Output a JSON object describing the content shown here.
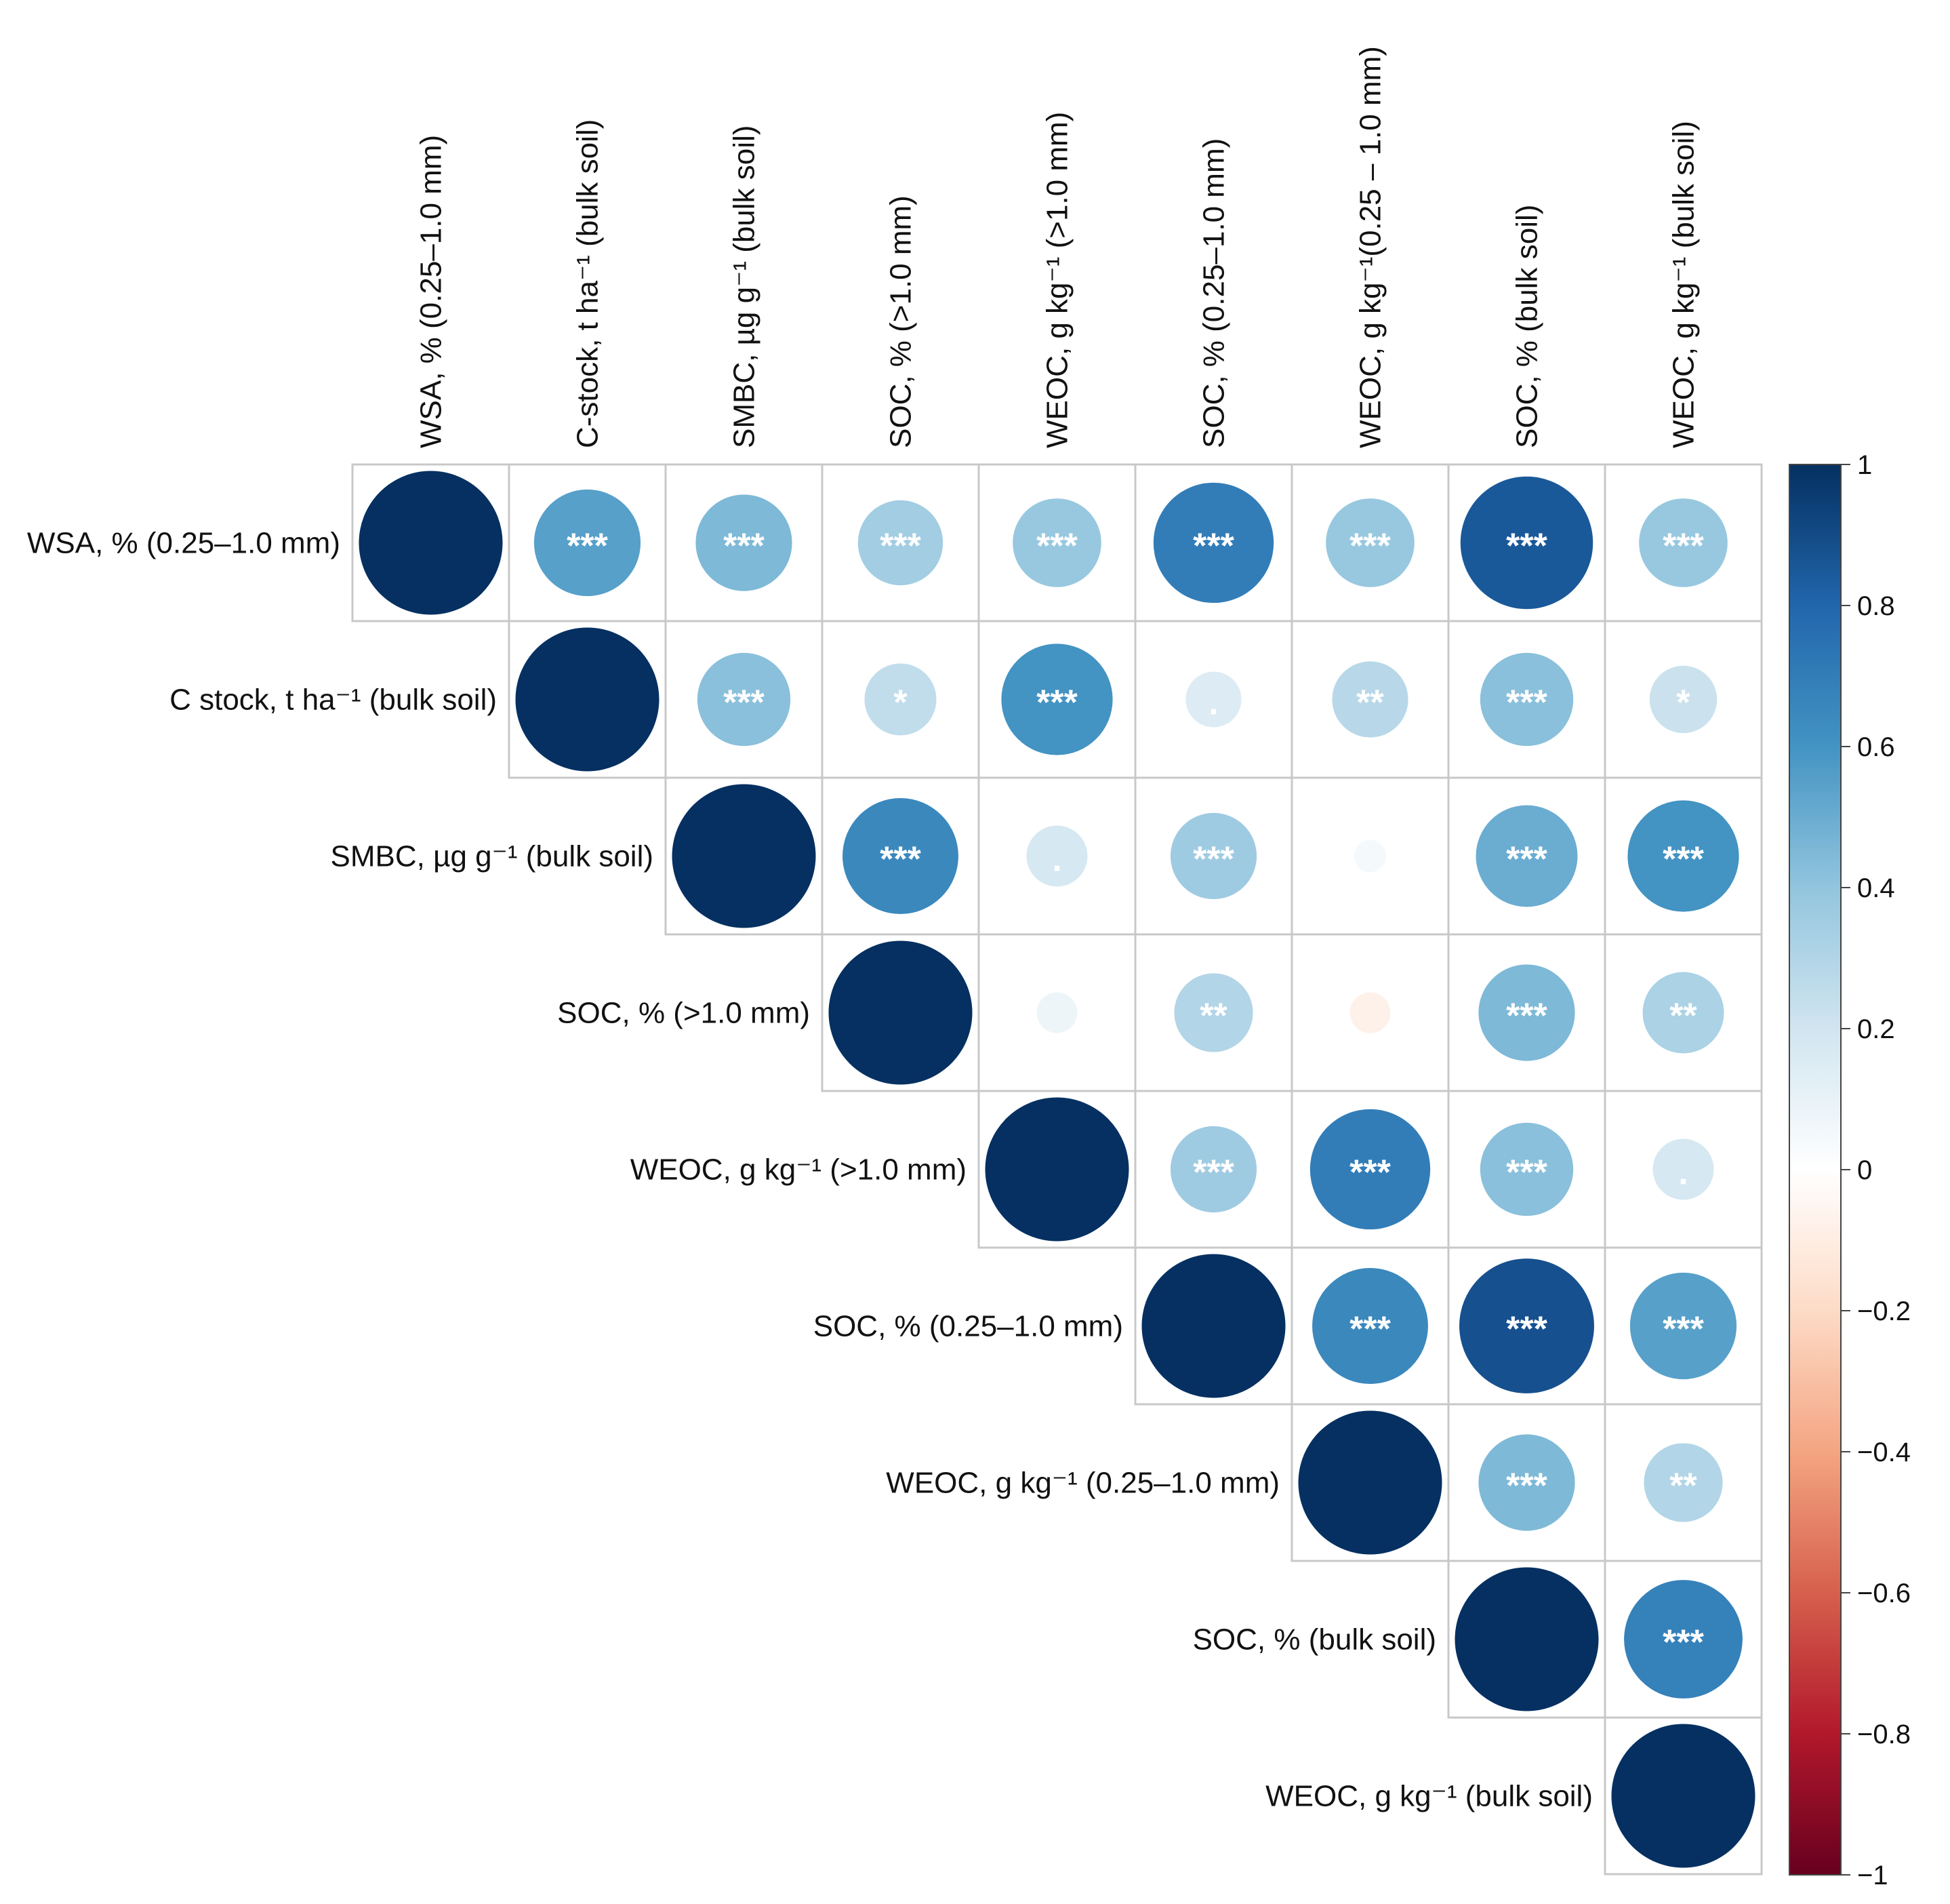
{
  "chart_data": {
    "type": "correlation-matrix",
    "shape": "upper-triangle circles",
    "variables_row": [
      "WSA, % (0.25–1.0 mm)",
      "C stock, t ha⁻¹ (bulk soil)",
      "SMBC, µg g⁻¹ (bulk soil)",
      "SOC, % (>1.0 mm)",
      "WEOC, g kg⁻¹   (>1.0 mm)",
      "SOC, %  (0.25–1.0 mm)",
      "WEOC, g kg⁻¹ (0.25–1.0 mm)",
      "SOC, % (bulk soil)",
      "WEOC, g kg⁻¹ (bulk soil)"
    ],
    "variables_col": [
      "WSA, % (0.25–1.0 mm)",
      "C-stock, t ha⁻¹ (bulk soil)",
      "SMBC, µg g⁻¹ (bulk soil)",
      "SOC, % (>1.0 mm)",
      "WEOC, g kg⁻¹ (>1.0 mm)",
      "SOC, % (0.25–1.0 mm)",
      "WEOC, g kg⁻¹(0.25 – 1.0 mm)",
      "SOC, % (bulk soil)",
      "WEOC, g kg⁻¹ (bulk soil)"
    ],
    "matrix": [
      [
        1.0,
        0.55,
        0.45,
        0.35,
        0.38,
        0.7,
        0.38,
        0.85,
        0.38
      ],
      [
        null,
        1.0,
        0.42,
        0.25,
        0.6,
        0.15,
        0.28,
        0.42,
        0.22
      ],
      [
        null,
        null,
        1.0,
        0.65,
        0.18,
        0.36,
        0.05,
        0.5,
        0.6
      ],
      [
        null,
        null,
        null,
        1.0,
        0.08,
        0.3,
        -0.08,
        0.45,
        0.32
      ],
      [
        null,
        null,
        null,
        null,
        1.0,
        0.36,
        0.7,
        0.42,
        0.18
      ],
      [
        null,
        null,
        null,
        null,
        null,
        1.0,
        0.65,
        0.88,
        0.55
      ],
      [
        null,
        null,
        null,
        null,
        null,
        null,
        1.0,
        0.45,
        0.3
      ],
      [
        null,
        null,
        null,
        null,
        null,
        null,
        null,
        1.0,
        0.68
      ],
      [
        null,
        null,
        null,
        null,
        null,
        null,
        null,
        null,
        1.0
      ]
    ],
    "significance": [
      [
        "",
        "***",
        "***",
        "***",
        "***",
        "***",
        "***",
        "***",
        "***"
      ],
      [
        "",
        "",
        "***",
        "*",
        "***",
        ".",
        "**",
        "***",
        "*"
      ],
      [
        "",
        "",
        "",
        "***",
        ".",
        "***",
        "",
        "***",
        "***"
      ],
      [
        "",
        "",
        "",
        "",
        "",
        "**",
        "",
        "***",
        "**"
      ],
      [
        "",
        "",
        "",
        "",
        "",
        "***",
        "***",
        "***",
        "."
      ],
      [
        "",
        "",
        "",
        "",
        "",
        "",
        "***",
        "***",
        "***"
      ],
      [
        "",
        "",
        "",
        "",
        "",
        "",
        "",
        "***",
        "**"
      ],
      [
        "",
        "",
        "",
        "",
        "",
        "",
        "",
        "",
        "***"
      ],
      [
        "",
        "",
        "",
        "",
        "",
        "",
        "",
        "",
        ""
      ]
    ],
    "colorbar": {
      "range": [
        -1,
        1
      ],
      "ticks": [
        "1",
        "0.8",
        "0.6",
        "0.4",
        "0.2",
        "0",
        "−0.2",
        "−0.4",
        "−0.6",
        "−0.8",
        "−1"
      ],
      "colors": [
        "#67001f",
        "#b2182b",
        "#d6604d",
        "#f4a582",
        "#fddbc7",
        "#ffffff",
        "#d1e5f0",
        "#92c5de",
        "#4393c3",
        "#2166ac",
        "#053061"
      ]
    },
    "legend_position": "right"
  }
}
